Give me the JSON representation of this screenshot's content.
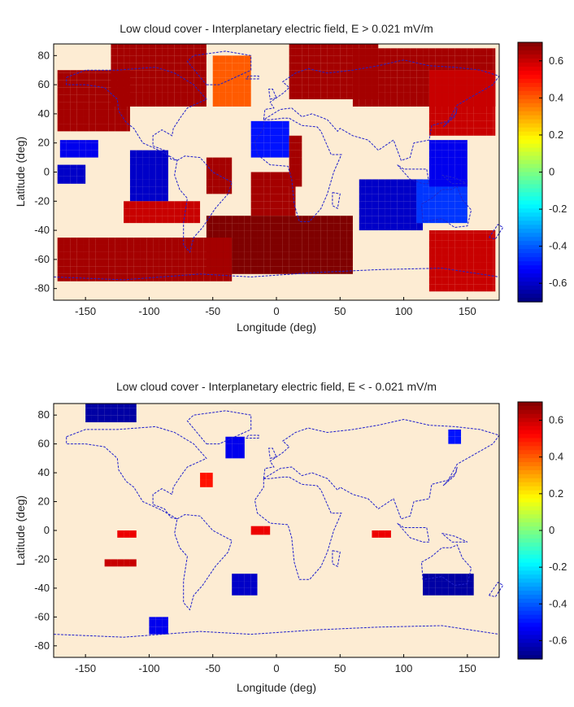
{
  "colors": {
    "scale": [
      "#00007f",
      "#0000ff",
      "#007fff",
      "#00ffff",
      "#7fff7f",
      "#ffff00",
      "#ff7f00",
      "#ff0000",
      "#7f0000"
    ],
    "map_background": "#fdecd3",
    "coastline": "#2222cc",
    "frame": "#000000"
  },
  "chart_data": [
    {
      "type": "heatmap",
      "title": "Low cloud cover - Interplanetary electric field, E > 0.021 mV/m",
      "xlabel": "Longitude (deg)",
      "ylabel": "Latitude (deg)",
      "xlim": [
        -175,
        175
      ],
      "ylim": [
        -88,
        88
      ],
      "xticks": [
        "-150",
        "-100",
        "-50",
        "0",
        "50",
        "100",
        "150"
      ],
      "yticks": [
        "80",
        "60",
        "40",
        "20",
        "0",
        "-20",
        "-40",
        "-60",
        "-80"
      ],
      "colorbar": {
        "range": [
          -0.7,
          0.7
        ],
        "ticks": [
          "0.6",
          "0.4",
          "0.2",
          "0",
          "-0.2",
          "-0.4",
          "-0.6"
        ]
      },
      "regions": [
        {
          "lon": [
            -172,
            -115
          ],
          "lat": [
            28,
            70
          ],
          "value": 0.65
        },
        {
          "lon": [
            -130,
            -55
          ],
          "lat": [
            45,
            88
          ],
          "value": 0.65
        },
        {
          "lon": [
            -50,
            -20
          ],
          "lat": [
            45,
            80
          ],
          "value": 0.4
        },
        {
          "lon": [
            10,
            80
          ],
          "lat": [
            50,
            88
          ],
          "value": 0.65
        },
        {
          "lon": [
            60,
            172
          ],
          "lat": [
            45,
            85
          ],
          "value": 0.65
        },
        {
          "lon": [
            120,
            172
          ],
          "lat": [
            25,
            70
          ],
          "value": 0.6
        },
        {
          "lon": [
            -172,
            -150
          ],
          "lat": [
            -8,
            5
          ],
          "value": -0.6
        },
        {
          "lon": [
            -170,
            -140
          ],
          "lat": [
            10,
            22
          ],
          "value": -0.55
        },
        {
          "lon": [
            -115,
            -85
          ],
          "lat": [
            -20,
            15
          ],
          "value": -0.6
        },
        {
          "lon": [
            -20,
            10
          ],
          "lat": [
            10,
            35
          ],
          "value": -0.5
        },
        {
          "lon": [
            65,
            115
          ],
          "lat": [
            -40,
            -5
          ],
          "value": -0.6
        },
        {
          "lon": [
            110,
            150
          ],
          "lat": [
            -35,
            -5
          ],
          "value": -0.45
        },
        {
          "lon": [
            120,
            150
          ],
          "lat": [
            -10,
            22
          ],
          "value": -0.55
        },
        {
          "lon": [
            -55,
            -35
          ],
          "lat": [
            -15,
            10
          ],
          "value": 0.65
        },
        {
          "lon": [
            -120,
            -60
          ],
          "lat": [
            -35,
            -20
          ],
          "value": 0.6
        },
        {
          "lon": [
            -55,
            60
          ],
          "lat": [
            -70,
            -30
          ],
          "value": 0.7
        },
        {
          "lon": [
            -20,
            15
          ],
          "lat": [
            -30,
            0
          ],
          "value": 0.65
        },
        {
          "lon": [
            -172,
            -35
          ],
          "lat": [
            -75,
            -45
          ],
          "value": 0.65
        },
        {
          "lon": [
            120,
            172
          ],
          "lat": [
            -82,
            -40
          ],
          "value": 0.6
        },
        {
          "lon": [
            10,
            20
          ],
          "lat": [
            -10,
            25
          ],
          "value": 0.65
        }
      ]
    },
    {
      "type": "heatmap",
      "title": "Low cloud cover - Interplanetary electric field, E < - 0.021 mV/m",
      "xlabel": "Longitude (deg)",
      "ylabel": "Latitude (deg)",
      "xlim": [
        -175,
        175
      ],
      "ylim": [
        -88,
        88
      ],
      "xticks": [
        "-150",
        "-100",
        "-50",
        "0",
        "50",
        "100",
        "150"
      ],
      "yticks": [
        "80",
        "60",
        "40",
        "20",
        "0",
        "-20",
        "-40",
        "-60",
        "-80"
      ],
      "colorbar": {
        "range": [
          -0.7,
          0.7
        ],
        "ticks": [
          "0.6",
          "0.4",
          "0.2",
          "0",
          "-0.2",
          "-0.4",
          "-0.6"
        ]
      },
      "regions": [
        {
          "lon": [
            -150,
            -110
          ],
          "lat": [
            75,
            88
          ],
          "value": -0.65
        },
        {
          "lon": [
            -40,
            -25
          ],
          "lat": [
            50,
            65
          ],
          "value": -0.55
        },
        {
          "lon": [
            115,
            155
          ],
          "lat": [
            -45,
            -30
          ],
          "value": -0.65
        },
        {
          "lon": [
            -35,
            -15
          ],
          "lat": [
            -45,
            -30
          ],
          "value": -0.6
        },
        {
          "lon": [
            -100,
            -85
          ],
          "lat": [
            -72,
            -60
          ],
          "value": -0.55
        },
        {
          "lon": [
            -135,
            -110
          ],
          "lat": [
            -25,
            -20
          ],
          "value": 0.6
        },
        {
          "lon": [
            -125,
            -110
          ],
          "lat": [
            -5,
            0
          ],
          "value": 0.55
        },
        {
          "lon": [
            -20,
            -5
          ],
          "lat": [
            -3,
            3
          ],
          "value": 0.55
        },
        {
          "lon": [
            75,
            90
          ],
          "lat": [
            -5,
            0
          ],
          "value": 0.55
        },
        {
          "lon": [
            135,
            145
          ],
          "lat": [
            60,
            70
          ],
          "value": -0.5
        },
        {
          "lon": [
            -60,
            -50
          ],
          "lat": [
            30,
            40
          ],
          "value": 0.5
        }
      ]
    }
  ]
}
